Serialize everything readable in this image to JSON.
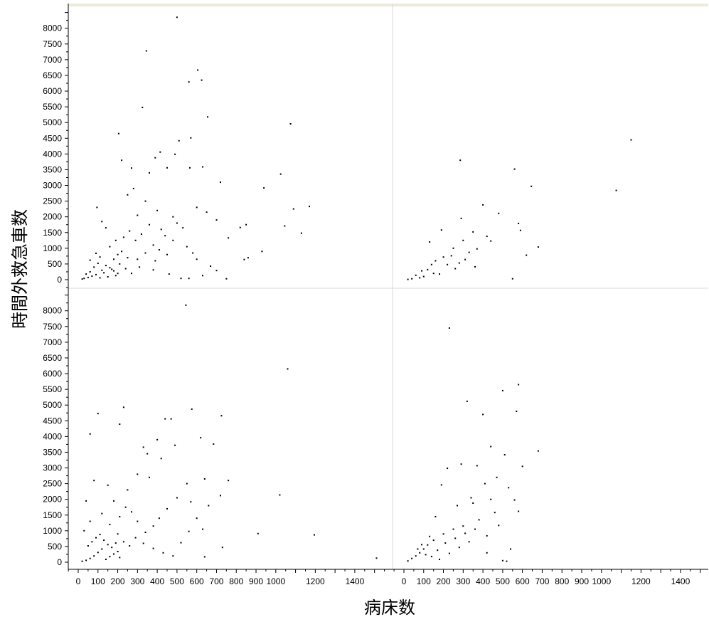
{
  "chart_data": {
    "type": "scatter",
    "xlabel": "病床数",
    "ylabel": "時間外救急車数",
    "xlim": [
      -50,
      1600
    ],
    "ylim": [
      -200,
      8650
    ],
    "x_ticks": [
      0,
      100,
      200,
      300,
      400,
      500,
      600,
      700,
      800,
      900,
      1000,
      1200,
      1400
    ],
    "y_ticks": [
      0,
      500,
      1000,
      1500,
      2000,
      2500,
      3000,
      3500,
      4000,
      4500,
      5000,
      5500,
      6000,
      6500,
      7000,
      7500,
      8000
    ],
    "grid": false,
    "panels": [
      {
        "position": "top-left",
        "points": [
          [
            500,
            8350
          ],
          [
            345,
            7280
          ],
          [
            605,
            6670
          ],
          [
            625,
            6350
          ],
          [
            560,
            6290
          ],
          [
            325,
            5480
          ],
          [
            655,
            5180
          ],
          [
            1075,
            4960
          ],
          [
            205,
            4650
          ],
          [
            570,
            4510
          ],
          [
            510,
            4420
          ],
          [
            415,
            4060
          ],
          [
            490,
            3990
          ],
          [
            390,
            3880
          ],
          [
            220,
            3800
          ],
          [
            450,
            3560
          ],
          [
            270,
            3550
          ],
          [
            565,
            3560
          ],
          [
            630,
            3590
          ],
          [
            1025,
            3360
          ],
          [
            360,
            3400
          ],
          [
            720,
            3100
          ],
          [
            940,
            2920
          ],
          [
            1090,
            2250
          ],
          [
            1170,
            2330
          ],
          [
            1045,
            1710
          ],
          [
            1130,
            1480
          ],
          [
            820,
            1660
          ],
          [
            850,
            1750
          ],
          [
            760,
            1330
          ],
          [
            930,
            900
          ],
          [
            860,
            700
          ],
          [
            840,
            640
          ],
          [
            750,
            30
          ],
          [
            700,
            290
          ],
          [
            670,
            430
          ],
          [
            520,
            40
          ],
          [
            560,
            40
          ],
          [
            630,
            130
          ],
          [
            460,
            180
          ],
          [
            380,
            310
          ],
          [
            410,
            950
          ],
          [
            480,
            1250
          ],
          [
            530,
            1650
          ],
          [
            300,
            2050
          ],
          [
            280,
            2900
          ],
          [
            250,
            2700
          ],
          [
            340,
            2500
          ],
          [
            400,
            2200
          ],
          [
            600,
            2300
          ],
          [
            650,
            2150
          ],
          [
            700,
            1900
          ],
          [
            480,
            2000
          ],
          [
            420,
            1600
          ],
          [
            360,
            1750
          ],
          [
            320,
            1450
          ],
          [
            290,
            1250
          ],
          [
            260,
            1550
          ],
          [
            230,
            1350
          ],
          [
            190,
            1250
          ],
          [
            160,
            1050
          ],
          [
            140,
            1650
          ],
          [
            120,
            1850
          ],
          [
            95,
            2300
          ],
          [
            220,
            900
          ],
          [
            250,
            700
          ],
          [
            180,
            650
          ],
          [
            300,
            650
          ],
          [
            340,
            850
          ],
          [
            380,
            1100
          ],
          [
            440,
            1400
          ],
          [
            500,
            1800
          ],
          [
            550,
            1050
          ],
          [
            580,
            850
          ],
          [
            600,
            650
          ],
          [
            450,
            800
          ],
          [
            390,
            600
          ],
          [
            310,
            400
          ],
          [
            270,
            200
          ],
          [
            210,
            500
          ],
          [
            30,
            40
          ],
          [
            50,
            70
          ],
          [
            70,
            110
          ],
          [
            90,
            160
          ],
          [
            110,
            60
          ],
          [
            130,
            220
          ],
          [
            150,
            90
          ],
          [
            170,
            330
          ],
          [
            190,
            130
          ],
          [
            60,
            250
          ],
          [
            80,
            400
          ],
          [
            100,
            520
          ],
          [
            120,
            300
          ],
          [
            40,
            180
          ],
          [
            20,
            20
          ],
          [
            140,
            450
          ],
          [
            160,
            380
          ],
          [
            180,
            280
          ],
          [
            200,
            800
          ],
          [
            200,
            200
          ],
          [
            240,
            350
          ],
          [
            60,
            620
          ],
          [
            110,
            720
          ],
          [
            90,
            840
          ]
        ]
      },
      {
        "position": "top-right",
        "points": [
          [
            1150,
            4450
          ],
          [
            285,
            3800
          ],
          [
            560,
            3520
          ],
          [
            645,
            2970
          ],
          [
            1075,
            2840
          ],
          [
            400,
            2380
          ],
          [
            480,
            2110
          ],
          [
            290,
            1950
          ],
          [
            580,
            1790
          ],
          [
            190,
            1580
          ],
          [
            590,
            1570
          ],
          [
            420,
            1380
          ],
          [
            350,
            1520
          ],
          [
            300,
            1250
          ],
          [
            130,
            1200
          ],
          [
            680,
            1040
          ],
          [
            250,
            1000
          ],
          [
            330,
            870
          ],
          [
            620,
            780
          ],
          [
            200,
            720
          ],
          [
            160,
            600
          ],
          [
            280,
            530
          ],
          [
            360,
            410
          ],
          [
            120,
            320
          ],
          [
            90,
            280
          ],
          [
            60,
            140
          ],
          [
            40,
            30
          ],
          [
            20,
            10
          ],
          [
            80,
            60
          ],
          [
            150,
            200
          ],
          [
            220,
            480
          ],
          [
            260,
            350
          ],
          [
            310,
            640
          ],
          [
            370,
            980
          ],
          [
            440,
            1230
          ],
          [
            550,
            30
          ],
          [
            180,
            180
          ],
          [
            100,
            100
          ],
          [
            140,
            480
          ],
          [
            240,
            760
          ]
        ]
      },
      {
        "position": "bottom-left",
        "points": [
          [
            545,
            8180
          ],
          [
            1060,
            6150
          ],
          [
            230,
            4930
          ],
          [
            575,
            4870
          ],
          [
            100,
            4730
          ],
          [
            725,
            4660
          ],
          [
            60,
            4080
          ],
          [
            440,
            4560
          ],
          [
            470,
            4560
          ],
          [
            210,
            4390
          ],
          [
            330,
            3660
          ],
          [
            620,
            3960
          ],
          [
            685,
            3760
          ],
          [
            400,
            3900
          ],
          [
            490,
            3720
          ],
          [
            350,
            3450
          ],
          [
            250,
            2300
          ],
          [
            300,
            2800
          ],
          [
            360,
            2700
          ],
          [
            420,
            3300
          ],
          [
            550,
            2500
          ],
          [
            640,
            2650
          ],
          [
            760,
            2600
          ],
          [
            720,
            2120
          ],
          [
            1020,
            2140
          ],
          [
            910,
            910
          ],
          [
            1195,
            870
          ],
          [
            730,
            470
          ],
          [
            630,
            1050
          ],
          [
            640,
            170
          ],
          [
            1510,
            130
          ],
          [
            570,
            1920
          ],
          [
            500,
            2050
          ],
          [
            450,
            1700
          ],
          [
            410,
            1400
          ],
          [
            380,
            1150
          ],
          [
            340,
            950
          ],
          [
            300,
            1300
          ],
          [
            270,
            1600
          ],
          [
            240,
            1750
          ],
          [
            210,
            1450
          ],
          [
            180,
            1950
          ],
          [
            150,
            2450
          ],
          [
            80,
            2600
          ],
          [
            40,
            1950
          ],
          [
            120,
            1550
          ],
          [
            160,
            1200
          ],
          [
            200,
            900
          ],
          [
            230,
            650
          ],
          [
            260,
            520
          ],
          [
            290,
            780
          ],
          [
            330,
            600
          ],
          [
            380,
            440
          ],
          [
            430,
            300
          ],
          [
            480,
            200
          ],
          [
            520,
            620
          ],
          [
            560,
            980
          ],
          [
            600,
            1400
          ],
          [
            660,
            1800
          ],
          [
            20,
            30
          ],
          [
            40,
            60
          ],
          [
            60,
            120
          ],
          [
            80,
            200
          ],
          [
            100,
            310
          ],
          [
            120,
            420
          ],
          [
            140,
            90
          ],
          [
            160,
            180
          ],
          [
            180,
            260
          ],
          [
            200,
            340
          ],
          [
            50,
            520
          ],
          [
            70,
            650
          ],
          [
            90,
            780
          ],
          [
            110,
            880
          ],
          [
            130,
            700
          ],
          [
            150,
            560
          ],
          [
            170,
            470
          ],
          [
            190,
            610
          ],
          [
            210,
            150
          ],
          [
            30,
            1000
          ],
          [
            60,
            1300
          ]
        ]
      },
      {
        "position": "bottom-right",
        "points": [
          [
            230,
            7450
          ],
          [
            580,
            5650
          ],
          [
            500,
            5460
          ],
          [
            320,
            5120
          ],
          [
            570,
            4800
          ],
          [
            400,
            4700
          ],
          [
            440,
            3680
          ],
          [
            680,
            3540
          ],
          [
            290,
            3120
          ],
          [
            510,
            3420
          ],
          [
            370,
            3070
          ],
          [
            220,
            2990
          ],
          [
            600,
            3050
          ],
          [
            470,
            2700
          ],
          [
            530,
            2370
          ],
          [
            190,
            2460
          ],
          [
            340,
            2050
          ],
          [
            410,
            2500
          ],
          [
            560,
            1980
          ],
          [
            580,
            1620
          ],
          [
            460,
            1580
          ],
          [
            380,
            1350
          ],
          [
            300,
            1150
          ],
          [
            250,
            1050
          ],
          [
            200,
            900
          ],
          [
            150,
            700
          ],
          [
            120,
            550
          ],
          [
            100,
            420
          ],
          [
            80,
            300
          ],
          [
            60,
            200
          ],
          [
            40,
            120
          ],
          [
            20,
            40
          ],
          [
            140,
            180
          ],
          [
            170,
            380
          ],
          [
            210,
            610
          ],
          [
            260,
            760
          ],
          [
            310,
            920
          ],
          [
            360,
            1050
          ],
          [
            420,
            840
          ],
          [
            480,
            1170
          ],
          [
            540,
            420
          ],
          [
            500,
            50
          ],
          [
            420,
            300
          ],
          [
            520,
            30
          ],
          [
            160,
            1450
          ],
          [
            270,
            1800
          ],
          [
            350,
            1880
          ],
          [
            440,
            2000
          ],
          [
            90,
            560
          ],
          [
            110,
            240
          ],
          [
            70,
            420
          ],
          [
            130,
            820
          ],
          [
            180,
            90
          ],
          [
            230,
            280
          ],
          [
            280,
            470
          ],
          [
            330,
            650
          ]
        ]
      }
    ]
  }
}
